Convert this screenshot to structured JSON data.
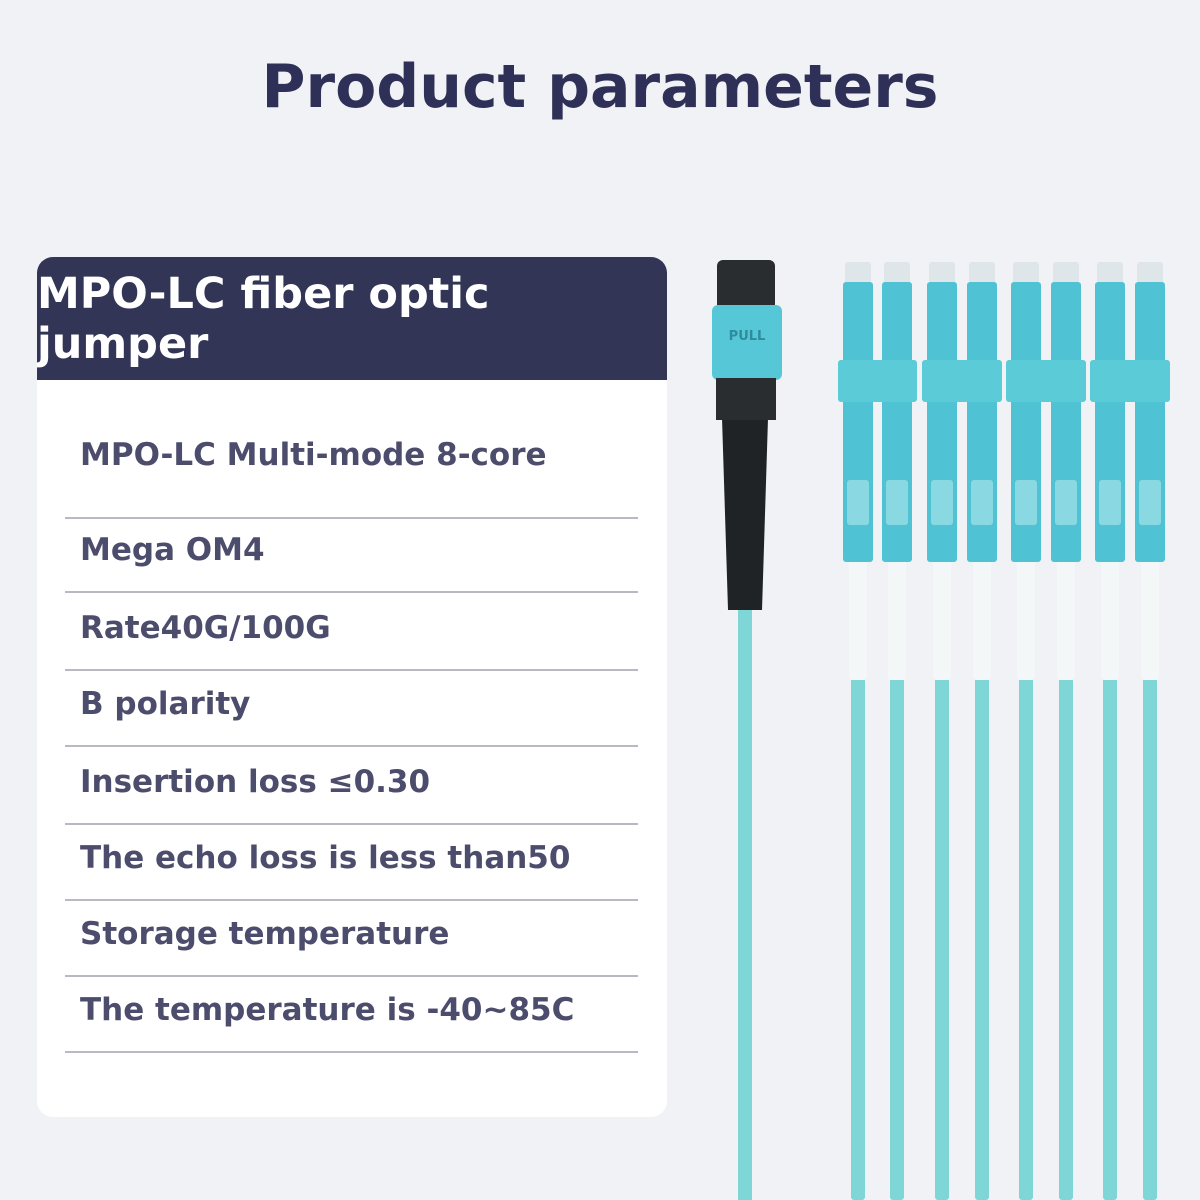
{
  "header": {
    "title": "Product parameters"
  },
  "card": {
    "title": "MPO-LC fiber optic jumper",
    "rows": [
      "MPO-LC Multi-mode 8-core",
      "Mega OM4",
      "Rate40G/100G",
      "B polarity",
      "Insertion loss ≤0.30",
      "The echo loss is less than50",
      "Storage temperature",
      "The temperature is -40~85C"
    ]
  },
  "connector": {
    "label": "PULL"
  }
}
